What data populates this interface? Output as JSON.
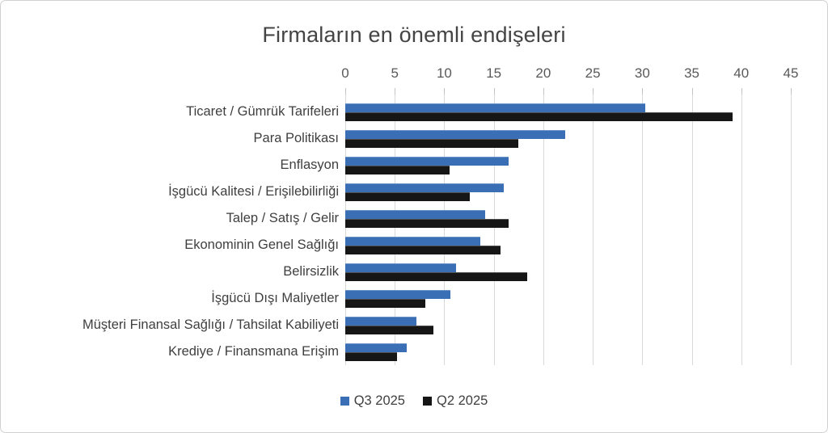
{
  "chart_data": {
    "type": "bar",
    "orientation": "horizontal",
    "title": "Firmaların en önemli endişeleri",
    "categories": [
      "Ticaret / Gümrük Tarifeleri",
      "Para Politikası",
      "Enflasyon",
      "İşgücü Kalitesi / Erişilebilirliği",
      "Talep / Satış / Gelir",
      "Ekonominin Genel Sağlığı",
      "Belirsizlik",
      "İşgücü Dışı Maliyetler",
      "Müşteri Finansal Sağlığı / Tahsilat Kabiliyeti",
      "Krediye / Finansmana Erişim"
    ],
    "series": [
      {
        "name": "Q3 2025",
        "color": "#3a6eb5",
        "values": [
          30.3,
          22.2,
          16.5,
          16.0,
          14.1,
          13.6,
          11.2,
          10.6,
          7.2,
          6.2
        ]
      },
      {
        "name": "Q2 2025",
        "color": "#161616",
        "values": [
          39.1,
          17.5,
          10.5,
          12.6,
          16.5,
          15.7,
          18.4,
          8.1,
          8.9,
          5.2
        ]
      }
    ],
    "x_axis": {
      "position": "top",
      "min": 0,
      "max": 45,
      "tick_interval": 5,
      "ticks": [
        0,
        5,
        10,
        15,
        20,
        25,
        30,
        35,
        40,
        45
      ]
    },
    "legend": {
      "position": "bottom",
      "entries": [
        "Q3 2025",
        "Q2 2025"
      ]
    },
    "grid": true,
    "gridline_color": "#d9d9d9",
    "background_color": "#ffffff",
    "text_color": "#595959"
  }
}
